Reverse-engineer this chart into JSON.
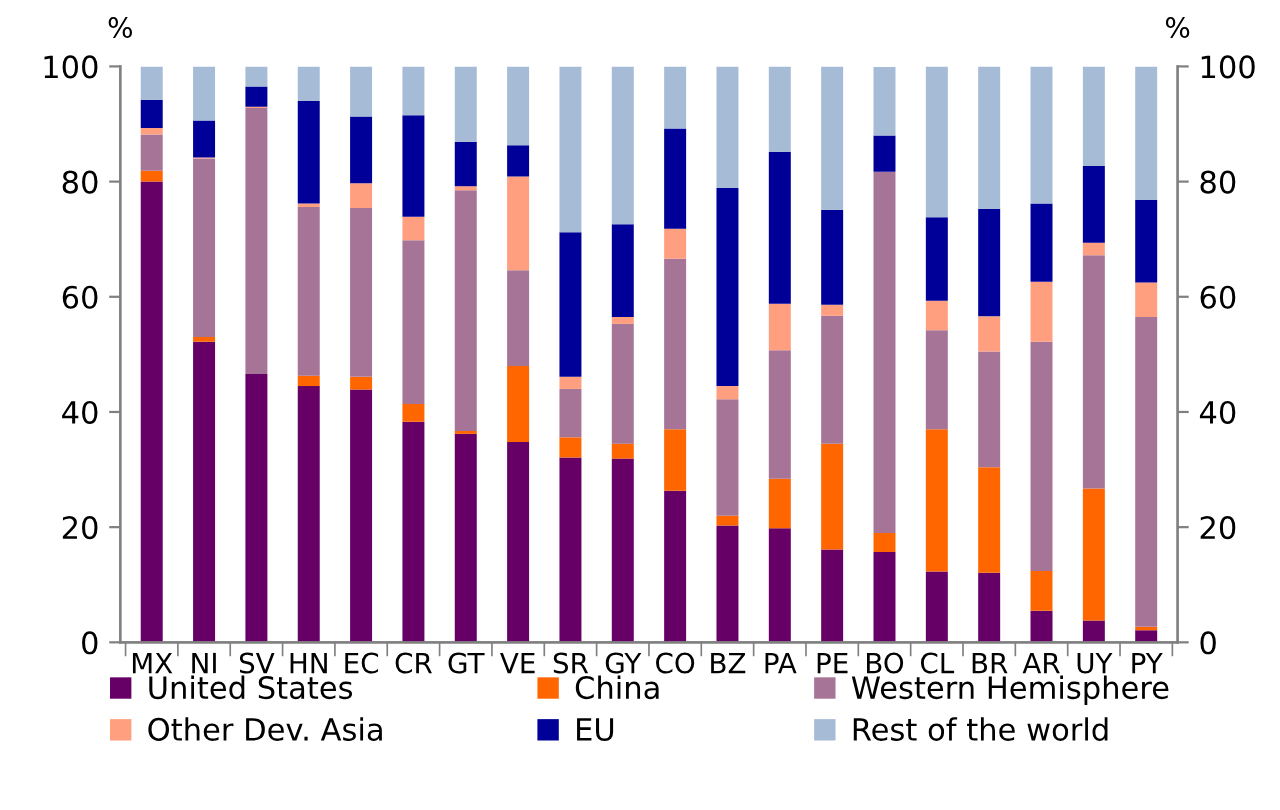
{
  "chart_data": {
    "type": "bar",
    "stacked": true,
    "ylabel": "%",
    "y2label": "%",
    "categories": [
      "MX",
      "NI",
      "SV",
      "HN",
      "EC",
      "CR",
      "GT",
      "VE",
      "SR",
      "GY",
      "CO",
      "BZ",
      "PA",
      "PE",
      "BO",
      "CL",
      "BR",
      "AR",
      "UY",
      "PY"
    ],
    "series": [
      {
        "name": "United States",
        "color": "#660066",
        "values": [
          80,
          52.2,
          46.6,
          44.5,
          43.9,
          38.3,
          36.2,
          34.8,
          32.1,
          31.9,
          26.3,
          20.3,
          19.8,
          16.1,
          15.7,
          12.3,
          12.1,
          5.5,
          3.8,
          2.1
        ]
      },
      {
        "name": "China",
        "color": "#ff6600",
        "values": [
          1.9,
          0.8,
          0,
          1.8,
          2.2,
          3.1,
          0.5,
          13.2,
          3.5,
          2.6,
          10.7,
          1.7,
          8.6,
          18.4,
          3.3,
          24.7,
          18.3,
          6.9,
          22.9,
          0.6
        ]
      },
      {
        "name": "Western Hemisphere",
        "color": "#a67497",
        "values": [
          6.3,
          31,
          46.2,
          29.3,
          29.3,
          28.4,
          41.8,
          16.6,
          8.4,
          20.8,
          29.6,
          20.2,
          22.3,
          22.2,
          62.7,
          17.2,
          20.1,
          39.8,
          40.5,
          53.8
        ]
      },
      {
        "name": "Other Dev. Asia",
        "color": "#ff9f80",
        "values": [
          1.1,
          0.2,
          0.2,
          0.6,
          4.3,
          4.1,
          0.7,
          16.3,
          2.1,
          1.2,
          5.2,
          2.3,
          8.1,
          1.9,
          null,
          5.1,
          6.1,
          10.4,
          2.2,
          6.0
        ]
      },
      {
        "name": "EU",
        "color": "#000099",
        "values": [
          4.9,
          6.4,
          3.5,
          17.8,
          11.6,
          17.6,
          7.7,
          5.4,
          25.1,
          16.1,
          17.4,
          34.4,
          26.4,
          16.5,
          6.3,
          14.5,
          18.7,
          13.6,
          13.3,
          14.3
        ]
      },
      {
        "name": "Rest of the world",
        "color": "#a6bcd6",
        "values": [
          5.8,
          9.4,
          3.5,
          6,
          8.7,
          8.5,
          13.1,
          13.7,
          28.8,
          27.4,
          10.8,
          21.1,
          14.8,
          24.9,
          11.9,
          26.2,
          24.7,
          23.8,
          17.3,
          23.2
        ]
      }
    ],
    "ylim": [
      0,
      100
    ],
    "yticks": [
      0,
      20,
      40,
      60,
      80,
      100
    ],
    "y2lim": [
      0,
      100
    ],
    "y2ticks": [
      0,
      20,
      40,
      60,
      80,
      100
    ],
    "grid": false,
    "legend": "bottom"
  }
}
